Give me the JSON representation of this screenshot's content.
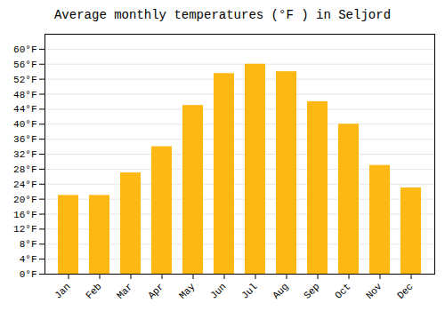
{
  "chart_data": {
    "type": "bar",
    "title": "Average monthly temperatures (°F ) in Seljord",
    "categories": [
      "Jan",
      "Feb",
      "Mar",
      "Apr",
      "May",
      "Jun",
      "Jul",
      "Aug",
      "Sep",
      "Oct",
      "Nov",
      "Dec"
    ],
    "values": [
      21.0,
      21.0,
      27.0,
      34.0,
      45.0,
      53.5,
      56.0,
      54.0,
      46.0,
      40.0,
      29.0,
      23.0
    ],
    "color": "#FDB813",
    "ylim": [
      0,
      64
    ],
    "yticks": [
      {
        "value": 0,
        "label": "0°F"
      },
      {
        "value": 4,
        "label": "4°F"
      },
      {
        "value": 8,
        "label": "8°F"
      },
      {
        "value": 12,
        "label": "12°F"
      },
      {
        "value": 16,
        "label": "16°F"
      },
      {
        "value": 20,
        "label": "20°F"
      },
      {
        "value": 24,
        "label": "24°F"
      },
      {
        "value": 28,
        "label": "28°F"
      },
      {
        "value": 32,
        "label": "32°F"
      },
      {
        "value": 36,
        "label": "36°F"
      },
      {
        "value": 40,
        "label": "40°F"
      },
      {
        "value": 44,
        "label": "44°F"
      },
      {
        "value": 48,
        "label": "48°F"
      },
      {
        "value": 52,
        "label": "52°F"
      },
      {
        "value": 56,
        "label": "56°F"
      },
      {
        "value": 60,
        "label": "60°F"
      }
    ],
    "grid": true
  }
}
